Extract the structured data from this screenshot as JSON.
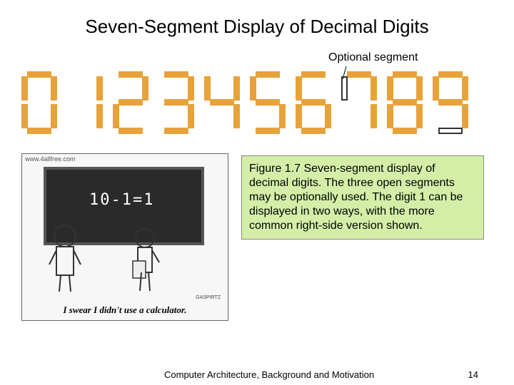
{
  "title": "Seven-Segment Display of Decimal Digits",
  "optional_label": "Optional segment",
  "segments": {
    "all": [
      "a",
      "b",
      "c",
      "d",
      "e",
      "f",
      "g"
    ],
    "color_on": "#e8a23a",
    "color_off_border": "#333333",
    "digits": [
      {
        "value": "0",
        "on": [
          "a",
          "b",
          "c",
          "d",
          "e",
          "f"
        ],
        "off": []
      },
      {
        "value": "1",
        "on": [
          "b",
          "c"
        ],
        "off": []
      },
      {
        "value": "2",
        "on": [
          "a",
          "b",
          "g",
          "e",
          "d"
        ],
        "off": []
      },
      {
        "value": "3",
        "on": [
          "a",
          "b",
          "g",
          "c",
          "d"
        ],
        "off": []
      },
      {
        "value": "4",
        "on": [
          "f",
          "g",
          "b",
          "c"
        ],
        "off": []
      },
      {
        "value": "5",
        "on": [
          "a",
          "f",
          "g",
          "c",
          "d"
        ],
        "off": []
      },
      {
        "value": "6",
        "on": [
          "a",
          "f",
          "g",
          "e",
          "c",
          "d"
        ],
        "off": []
      },
      {
        "value": "7",
        "on": [
          "a",
          "b",
          "c"
        ],
        "off": [
          "f"
        ]
      },
      {
        "value": "8",
        "on": [
          "a",
          "b",
          "c",
          "d",
          "e",
          "f",
          "g"
        ],
        "off": []
      },
      {
        "value": "9",
        "on": [
          "a",
          "b",
          "c",
          "f",
          "g"
        ],
        "off": [
          "d"
        ]
      }
    ]
  },
  "cartoon": {
    "url": "www.4allfree.com",
    "board_text": "10-1=1",
    "caption": "I swear I didn't use a calculator.",
    "signature": "GASPIRTZ"
  },
  "figure_caption": "Figure 1.7    Seven-segment display of decimal digits. The three open segments may be optionally used. The digit 1 can be displayed in two ways, with the more common right-side version shown.",
  "footer": {
    "text": "Computer Architecture, Background and Motivation",
    "page": "14"
  },
  "colors": {
    "caption_bg": "#d4eea8",
    "page_bg": "#ffffff"
  }
}
